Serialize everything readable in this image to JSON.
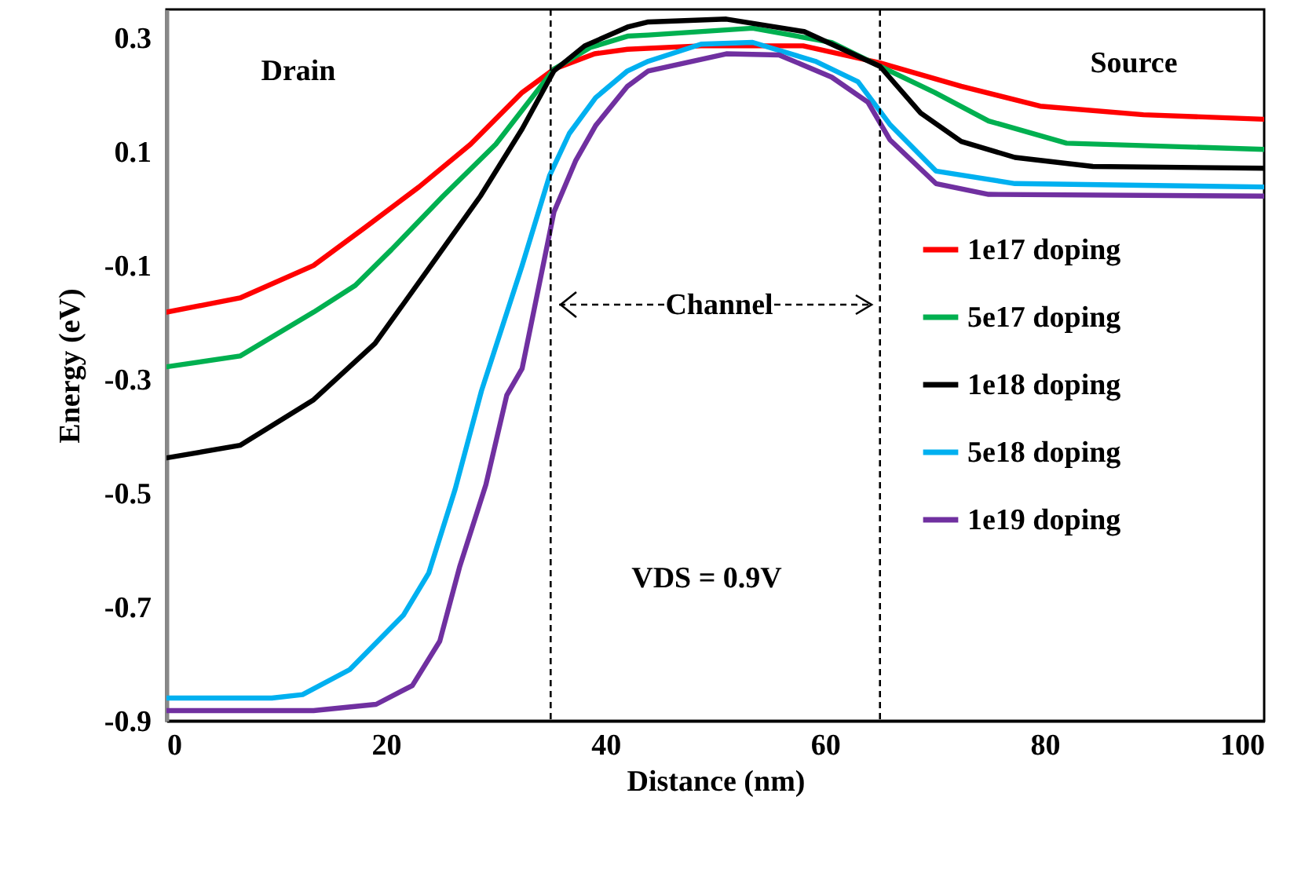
{
  "chart_data": {
    "type": "line",
    "xlabel": "Distance (nm)",
    "ylabel": "Energy (eV)",
    "xlim": [
      0,
      100
    ],
    "xticks": [
      0,
      20,
      40,
      60,
      80,
      100
    ],
    "ylim": [
      -0.9,
      0.35
    ],
    "yticks": [
      {
        "value": -0.9,
        "label": "-0.9"
      },
      {
        "value": -0.7,
        "label": "-0.7"
      },
      {
        "value": -0.5,
        "label": "-0.5"
      },
      {
        "value": -0.3,
        "label": "-0.3"
      },
      {
        "value": -0.1,
        "label": "-0.1"
      },
      {
        "value": 0.1,
        "label": "0.1"
      },
      {
        "value": 0.3,
        "label": "0.3"
      }
    ],
    "grid": false,
    "legend": "right",
    "line_style": "solid",
    "series": [
      {
        "name": "1e17 doping",
        "color": "#ff0000",
        "x": [
          0,
          6.7,
          13.4,
          18.1,
          23,
          27.7,
          32.4,
          35.3,
          39,
          42,
          48.7,
          58,
          65,
          72.4,
          79.6,
          89,
          100
        ],
        "values": [
          -0.182,
          -0.157,
          -0.1,
          -0.033,
          0.038,
          0.113,
          0.204,
          0.245,
          0.272,
          0.28,
          0.286,
          0.286,
          0.256,
          0.215,
          0.18,
          0.165,
          0.157
        ]
      },
      {
        "name": "5e17 doping",
        "color": "#00b050",
        "x": [
          0,
          6.7,
          13.4,
          17.2,
          20.5,
          25.2,
          30,
          35.3,
          38.6,
          42,
          43.9,
          53.4,
          60.6,
          65,
          70,
          74.9,
          82,
          100
        ],
        "values": [
          -0.278,
          -0.259,
          -0.182,
          -0.135,
          -0.072,
          0.022,
          0.113,
          0.245,
          0.283,
          0.303,
          0.305,
          0.317,
          0.292,
          0.25,
          0.204,
          0.154,
          0.115,
          0.104
        ]
      },
      {
        "name": "1e18 doping",
        "color": "#000000",
        "x": [
          0,
          6.7,
          13.4,
          19,
          23.8,
          28.6,
          32.4,
          35.3,
          38.1,
          42,
          43.9,
          51,
          58.1,
          65,
          68.7,
          72.4,
          77.3,
          84.4,
          100
        ],
        "values": [
          -0.438,
          -0.416,
          -0.336,
          -0.237,
          -0.108,
          0.022,
          0.14,
          0.242,
          0.286,
          0.319,
          0.328,
          0.333,
          0.311,
          0.25,
          0.168,
          0.118,
          0.09,
          0.074,
          0.071
        ]
      },
      {
        "name": "5e18 doping",
        "color": "#00b0f0",
        "x": [
          0,
          9.6,
          12.4,
          16.7,
          21.6,
          23.9,
          26.3,
          28.7,
          32.4,
          34.9,
          36.7,
          39.1,
          42,
          43.9,
          48.7,
          53.4,
          59.1,
          63,
          65.9,
          70.1,
          77.3,
          100
        ],
        "values": [
          -0.86,
          -0.86,
          -0.854,
          -0.81,
          -0.714,
          -0.64,
          -0.493,
          -0.32,
          -0.1,
          0.058,
          0.132,
          0.195,
          0.242,
          0.259,
          0.289,
          0.292,
          0.259,
          0.223,
          0.148,
          0.066,
          0.044,
          0.038
        ]
      },
      {
        "name": "1e19 doping",
        "color": "#7030a0",
        "x": [
          0,
          13.4,
          19.1,
          22.4,
          24.9,
          26.7,
          29.1,
          31,
          32.4,
          35.3,
          37.3,
          39.1,
          42,
          43.9,
          51,
          55.8,
          60.6,
          63.9,
          65.9,
          70.1,
          74.9,
          100
        ],
        "values": [
          -0.882,
          -0.882,
          -0.871,
          -0.838,
          -0.76,
          -0.63,
          -0.485,
          -0.328,
          -0.281,
          -0.006,
          0.085,
          0.146,
          0.215,
          0.242,
          0.272,
          0.27,
          0.231,
          0.187,
          0.121,
          0.044,
          0.025,
          0.022
        ]
      }
    ],
    "ref_lines": [
      {
        "axis": "x",
        "value": 35,
        "color": "#000000",
        "line_style": "dashed"
      },
      {
        "axis": "x",
        "value": 65,
        "color": "#000000",
        "line_style": "dashed"
      }
    ],
    "annotations": [
      "Drain",
      "Source",
      "Channel",
      "VDS =  0.9V"
    ]
  }
}
